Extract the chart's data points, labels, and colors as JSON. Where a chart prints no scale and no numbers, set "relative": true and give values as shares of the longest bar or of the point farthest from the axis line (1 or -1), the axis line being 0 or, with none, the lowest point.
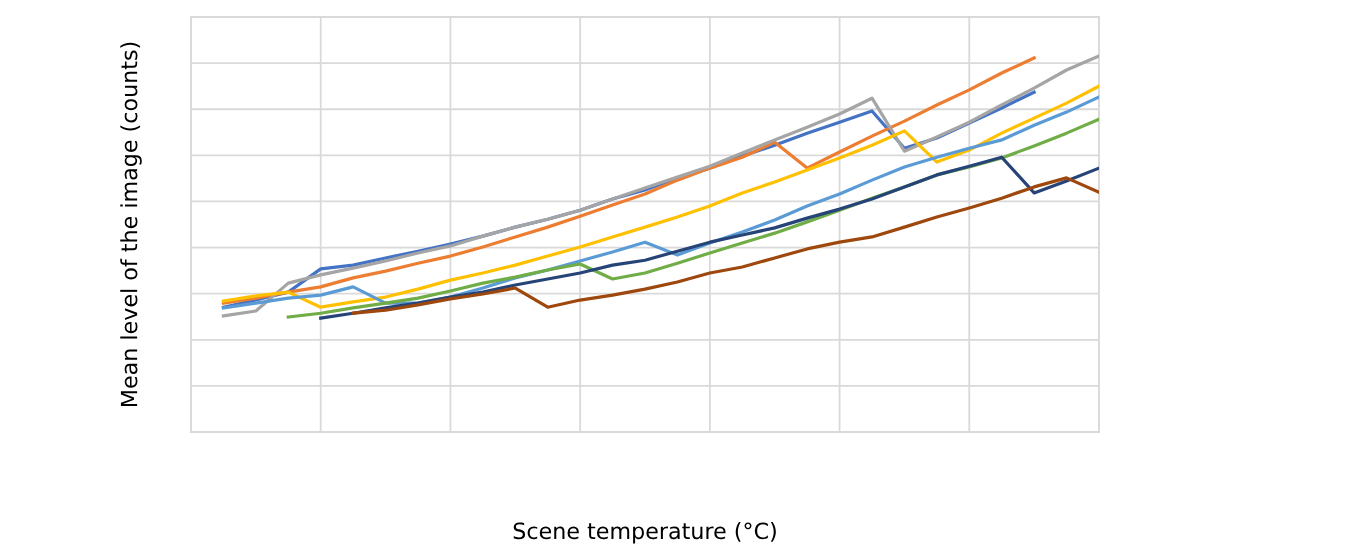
{
  "chart_data": {
    "type": "line",
    "relative": true,
    "grid": true,
    "marker": "none",
    "line_style": "solid",
    "xlabel": "Scene temperature (°C)",
    "ylabel": "Mean level of the image (counts)",
    "categories": [
      null,
      null,
      null,
      null,
      null,
      null,
      null,
      null,
      null,
      null,
      null,
      null,
      null,
      null,
      null,
      null,
      null,
      null,
      null,
      null,
      null,
      null,
      null,
      null,
      null,
      null,
      null,
      null,
      null
    ],
    "series": [
      {
        "color": "#4472c4",
        "values": [
          null,
          0.332,
          0.351,
          0.372,
          0.434,
          0.444,
          0.463,
          0.481,
          0.5,
          0.521,
          0.545,
          0.566,
          0.59,
          0.62,
          0.644,
          0.676,
          0.702,
          0.734,
          0.763,
          0.795,
          0.824,
          0.854,
          0.755,
          0.782,
          0.822,
          0.862,
          0.904,
          null,
          null
        ]
      },
      {
        "color": "#ed7d31",
        "values": [
          null,
          0.343,
          0.356,
          0.372,
          0.386,
          0.41,
          0.428,
          0.449,
          0.468,
          0.492,
          0.519,
          0.545,
          0.574,
          0.604,
          0.633,
          0.67,
          0.702,
          0.731,
          0.771,
          0.702,
          0.745,
          0.787,
          0.827,
          0.87,
          0.91,
          0.955,
          0.995,
          null,
          null
        ]
      },
      {
        "color": "#a5a5a5",
        "values": [
          null,
          0.309,
          0.322,
          0.396,
          0.418,
          0.436,
          0.455,
          0.476,
          0.495,
          0.521,
          0.545,
          0.566,
          0.59,
          0.62,
          0.649,
          0.678,
          0.707,
          0.742,
          0.777,
          0.811,
          0.846,
          0.888,
          0.747,
          0.785,
          0.824,
          0.87,
          0.915,
          0.963,
          1.0
        ]
      },
      {
        "color": "#ffc000",
        "values": [
          null,
          0.348,
          0.362,
          0.372,
          0.332,
          0.346,
          0.359,
          0.38,
          0.404,
          0.423,
          0.444,
          0.468,
          0.492,
          0.519,
          0.545,
          0.572,
          0.601,
          0.636,
          0.665,
          0.697,
          0.729,
          0.763,
          0.801,
          0.718,
          0.75,
          0.795,
          0.835,
          0.875,
          0.92
        ]
      },
      {
        "color": "#5b9bd5",
        "values": [
          null,
          0.33,
          0.343,
          0.356,
          0.364,
          0.386,
          0.343,
          0.343,
          0.359,
          0.383,
          0.41,
          0.431,
          0.455,
          0.479,
          0.505,
          0.471,
          0.503,
          0.532,
          0.564,
          0.601,
          0.633,
          0.67,
          0.705,
          0.731,
          0.755,
          0.777,
          0.816,
          0.851,
          0.891
        ]
      },
      {
        "color": "#70ad47",
        "values": [
          null,
          null,
          null,
          0.306,
          0.316,
          0.33,
          0.343,
          0.356,
          0.375,
          0.396,
          0.412,
          0.431,
          0.447,
          0.407,
          0.423,
          0.449,
          0.476,
          0.503,
          0.529,
          0.559,
          0.59,
          0.622,
          0.652,
          0.684,
          0.705,
          0.729,
          0.761,
          0.795,
          0.832
        ]
      },
      {
        "color": "#264478",
        "values": [
          null,
          null,
          null,
          null,
          0.303,
          0.316,
          0.33,
          0.343,
          0.359,
          0.372,
          0.391,
          0.407,
          0.423,
          0.444,
          0.457,
          0.481,
          0.505,
          0.524,
          0.543,
          0.569,
          0.593,
          0.62,
          0.652,
          0.684,
          0.707,
          0.731,
          0.636,
          0.668,
          0.702
        ]
      },
      {
        "color": "#9e480e",
        "values": [
          null,
          null,
          null,
          null,
          null,
          0.316,
          0.324,
          0.338,
          0.354,
          0.367,
          0.383,
          0.332,
          0.351,
          0.364,
          0.38,
          0.399,
          0.423,
          0.439,
          0.463,
          0.487,
          0.505,
          0.519,
          0.545,
          0.572,
          0.596,
          0.622,
          0.652,
          0.676,
          0.638
        ]
      }
    ]
  }
}
